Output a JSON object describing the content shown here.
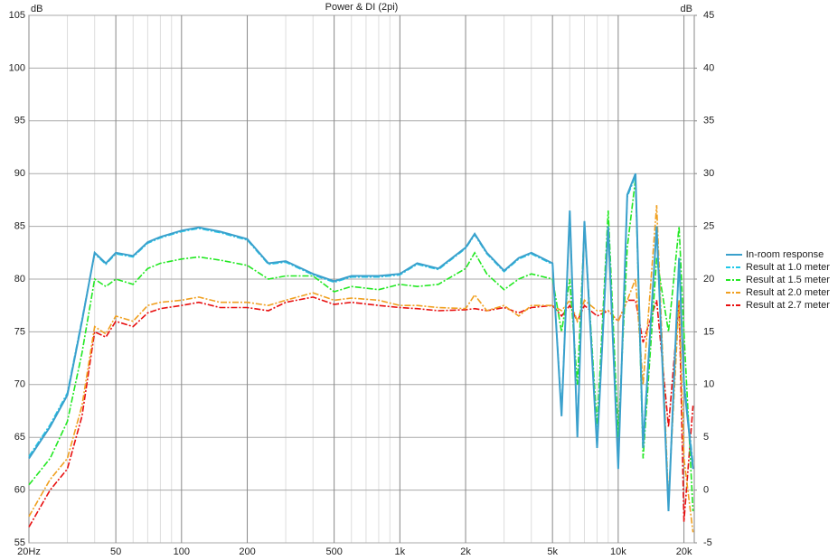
{
  "chart_data": {
    "type": "line",
    "title": "Power & DI (2pi)",
    "ylabel": "dB",
    "y2label": "dB",
    "xscale": "log",
    "grid": true,
    "legend": "right",
    "xlim": [
      20,
      22300
    ],
    "ylim": [
      55,
      105
    ],
    "y2lim": [
      -5,
      45
    ],
    "xticks": [
      {
        "value": 20,
        "label": "20Hz"
      },
      50,
      100,
      200,
      500,
      {
        "value": 1000,
        "label": "1k"
      },
      {
        "value": 2000,
        "label": "2k"
      },
      {
        "value": 5000,
        "label": "5k"
      },
      {
        "value": 10000,
        "label": "10k"
      },
      {
        "value": 20000,
        "label": "20k"
      }
    ],
    "xminorticks": [
      30,
      40,
      60,
      70,
      80,
      90,
      300,
      400,
      600,
      700,
      800,
      900,
      3000,
      4000,
      6000,
      7000,
      8000,
      9000
    ],
    "yticks": [
      55,
      60,
      65,
      70,
      75,
      80,
      85,
      90,
      95,
      100,
      105
    ],
    "y2ticks": [
      -5,
      0,
      5,
      10,
      15,
      20,
      25,
      30,
      35,
      40,
      45
    ],
    "x": [
      20,
      25,
      30,
      35,
      40,
      45,
      50,
      60,
      70,
      80,
      100,
      120,
      150,
      200,
      250,
      300,
      400,
      500,
      600,
      800,
      1000,
      1200,
      1500,
      2000,
      2200,
      2500,
      3000,
      3500,
      4000,
      5000,
      5500,
      6000,
      6500,
      7000,
      8000,
      9000,
      10000,
      11000,
      12000,
      13000,
      15000,
      17000,
      19000,
      20000,
      22000
    ],
    "series": [
      {
        "name": "In-room response",
        "color": "#3aa0cc",
        "style": "solid",
        "values": [
          63,
          66,
          69,
          76,
          82.5,
          81.5,
          82.5,
          82.2,
          83.5,
          84,
          84.6,
          84.9,
          84.5,
          83.8,
          81.5,
          81.7,
          80.5,
          79.8,
          80.3,
          80.3,
          80.5,
          81.5,
          81,
          83,
          84.3,
          82.5,
          80.8,
          82,
          82.5,
          81.5,
          67,
          86.5,
          65,
          85.5,
          64,
          85,
          62,
          88,
          90,
          64,
          85,
          58,
          82,
          70,
          62
        ]
      },
      {
        "name": "Result at 1.0 meter",
        "color": "#20c8e8",
        "style": "dashdot",
        "values": [
          63.2,
          66.2,
          69.2,
          76.2,
          82.4,
          81.4,
          82.4,
          82.1,
          83.4,
          83.9,
          84.5,
          84.8,
          84.4,
          83.7,
          81.4,
          81.6,
          80.4,
          79.7,
          80.2,
          80.2,
          80.4,
          81.4,
          80.9,
          82.9,
          84.2,
          82.4,
          80.7,
          81.9,
          82.4,
          81.4,
          67.5,
          86.3,
          65.5,
          85.3,
          64.5,
          84.8,
          62.5,
          87.8,
          89.8,
          64.5,
          84.8,
          58.5,
          81.8,
          70.5,
          62.5
        ]
      },
      {
        "name": "Result at 1.5 meter",
        "color": "#22e822",
        "style": "dashdot",
        "values": [
          60.5,
          63,
          66.5,
          73,
          80,
          79.3,
          80,
          79.5,
          81,
          81.5,
          81.9,
          82.1,
          81.8,
          81.3,
          80,
          80.3,
          80.3,
          78.8,
          79.3,
          79,
          79.5,
          79.3,
          79.5,
          81,
          82.5,
          80.5,
          79,
          80,
          80.5,
          80,
          75,
          80,
          70,
          85,
          66,
          86.5,
          65,
          83,
          89.5,
          63,
          82,
          75,
          85,
          75,
          58
        ]
      },
      {
        "name": "Result at 2.0 meter",
        "color": "#f0a020",
        "style": "dashdot",
        "values": [
          57.5,
          61,
          63,
          68,
          75.5,
          74.8,
          76.5,
          76,
          77.5,
          77.8,
          78,
          78.3,
          77.8,
          77.8,
          77.5,
          78,
          78.7,
          78,
          78.2,
          78,
          77.5,
          77.5,
          77.3,
          77.2,
          78.5,
          77,
          77.5,
          76.5,
          77.5,
          77.5,
          77,
          78,
          76,
          78,
          77,
          77,
          76,
          78,
          80,
          70,
          87,
          59,
          78,
          63,
          56
        ]
      },
      {
        "name": "Result at 2.7 meter",
        "color": "#e81010",
        "style": "dashdot",
        "values": [
          56.5,
          60,
          62,
          67,
          75,
          74.5,
          76,
          75.5,
          76.8,
          77.2,
          77.5,
          77.8,
          77.3,
          77.3,
          77,
          77.8,
          78.3,
          77.6,
          77.8,
          77.5,
          77.3,
          77.2,
          77,
          77.1,
          77.2,
          77,
          77.3,
          76.8,
          77.3,
          77.5,
          76.5,
          77.5,
          76,
          77.5,
          76.5,
          77,
          76,
          78,
          78,
          74,
          78,
          66,
          78,
          57,
          68
        ]
      }
    ]
  }
}
